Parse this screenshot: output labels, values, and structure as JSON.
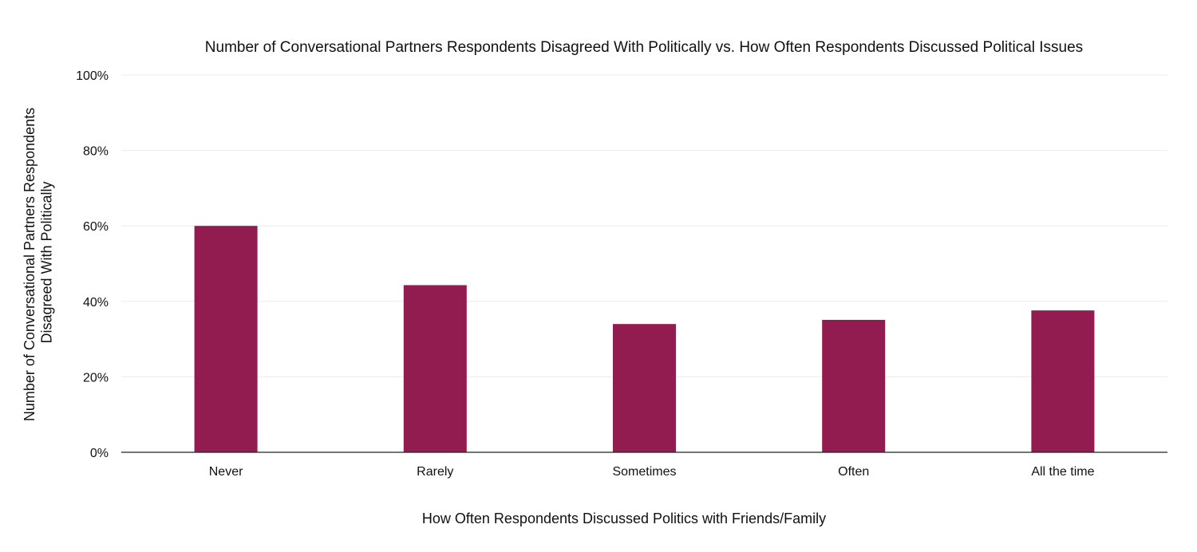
{
  "chart_data": {
    "type": "bar",
    "title": "Number of Conversational Partners Respondents Disagreed With Politically vs. How Often Respondents Discussed Political Issues",
    "xlabel": "How Often Respondents Discussed Politics with Friends/Family",
    "ylabel_lines": [
      "Number of Conversational Partners Respondents",
      "Disagreed With Politically"
    ],
    "categories": [
      "Never",
      "Rarely",
      "Sometimes",
      "Often",
      "All the time"
    ],
    "values": [
      60,
      44.3,
      34,
      35.1,
      37.6
    ],
    "ylim": [
      0,
      100
    ],
    "yticks": [
      0,
      20,
      40,
      60,
      80,
      100
    ],
    "ytick_labels": [
      "0%",
      "20%",
      "40%",
      "60%",
      "80%",
      "100%"
    ],
    "grid": true,
    "bar_color": "#921c50"
  }
}
